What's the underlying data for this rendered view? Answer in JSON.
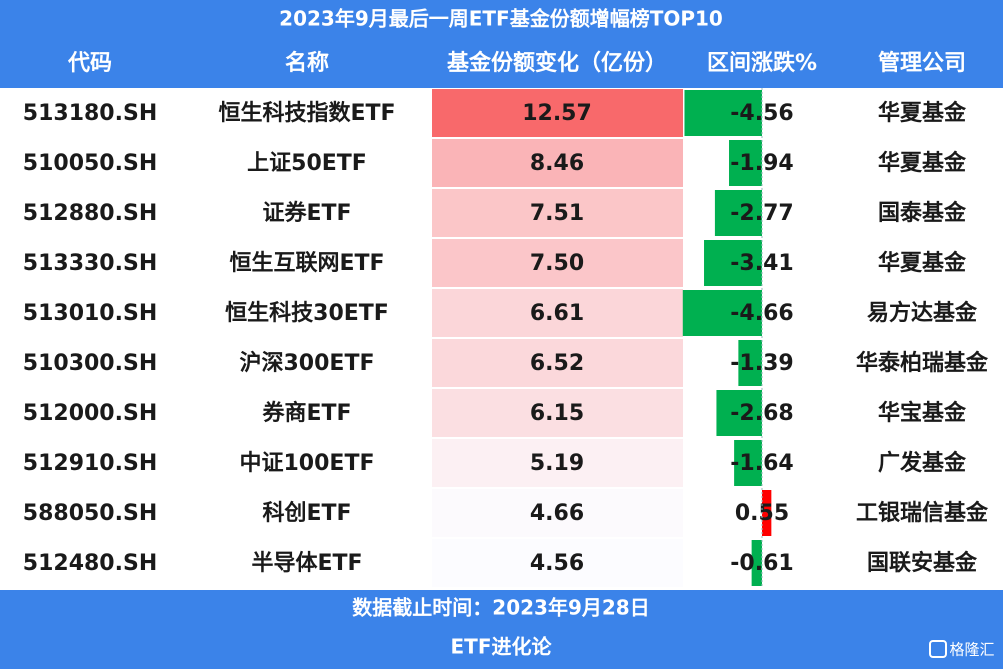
{
  "title": "2023年9月最后一周ETF基金份额增幅榜TOP10",
  "table": {
    "header": [
      "代码",
      "名称",
      "基金份额变化（亿份）",
      "区间涨跌%",
      "管理公司"
    ],
    "rows": [
      [
        "513180.SH",
        "恒生科技指数ETF",
        12.57,
        -4.56,
        "华夏基金"
      ],
      [
        "510050.SH",
        "上证50ETF",
        8.46,
        -1.94,
        "华夏基金"
      ],
      [
        "512880.SH",
        "证券ETF",
        7.51,
        -2.77,
        "国泰基金"
      ],
      [
        "513330.SH",
        "恒生互联网ETF",
        {
          "value": 7.5,
          "label": "7.50"
        },
        -3.41,
        "华夏基金"
      ],
      [
        "513010.SH",
        "恒生科技30ETF",
        6.61,
        -4.66,
        "易方达基金"
      ],
      [
        "510300.SH",
        "沪深300ETF",
        6.52,
        -1.39,
        "华泰柏瑞基金"
      ],
      [
        "512000.SH",
        "券商ETF",
        6.15,
        -2.68,
        "华宝基金"
      ],
      [
        "512910.SH",
        "中证100ETF",
        5.19,
        -1.64,
        "广发基金"
      ],
      [
        "588050.SH",
        "科创ETF",
        4.66,
        0.55,
        "工银瑞信基金"
      ],
      [
        "512480.SH",
        "半导体ETF",
        4.56,
        -0.61,
        "国联安基金"
      ]
    ]
  },
  "footer": {
    "note": "数据截止时间：2023年9月28日",
    "source": "ETF进化论"
  },
  "watermark": "格隆汇"
}
